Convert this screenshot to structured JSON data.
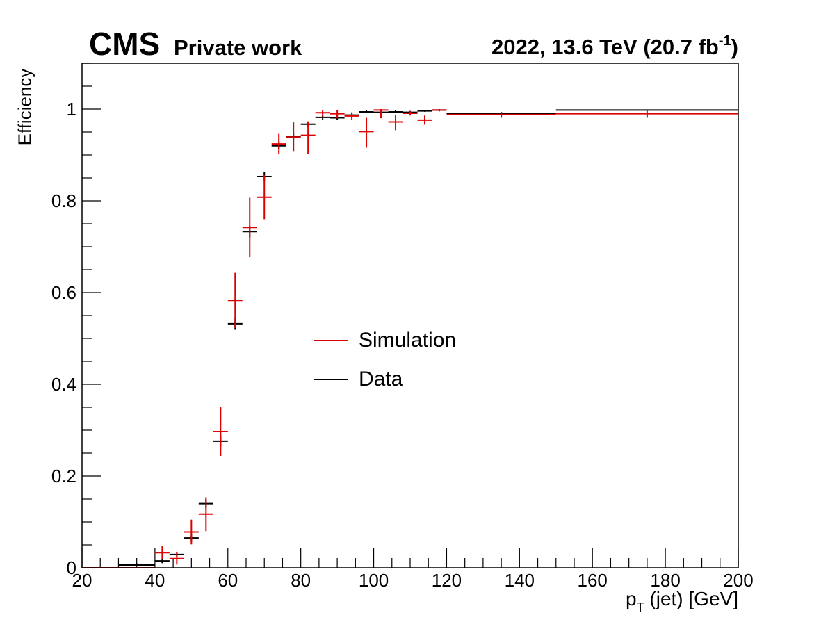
{
  "header": {
    "logo": "CMS",
    "subtitle": "Private work",
    "lumi_main": "2022, 13.6 TeV (20.7 fb",
    "lumi_sup": "-1",
    "lumi_close": ")"
  },
  "axes": {
    "ylabel": "Efficiency",
    "xlabel_main": "p",
    "xlabel_sub": "T",
    "xlabel_rest": " (jet) [GeV]"
  },
  "legend": {
    "simulation": "Simulation",
    "data": "Data"
  },
  "colors": {
    "simulation": "#dd0000",
    "data": "#000000"
  },
  "chart_data": {
    "type": "scatter",
    "xlim": [
      20,
      200
    ],
    "ylim": [
      0,
      1.1
    ],
    "xticks": [
      20,
      40,
      60,
      80,
      100,
      120,
      140,
      160,
      180,
      200
    ],
    "xtick_labels": [
      "20",
      "40",
      "60",
      "80",
      "100",
      "120",
      "140",
      "160",
      "180",
      "200"
    ],
    "yticks": [
      0,
      0.2,
      0.4,
      0.6,
      0.8,
      1
    ],
    "ytick_labels": [
      "0",
      "0.2",
      "0.4",
      "0.6",
      "0.8",
      "1"
    ],
    "grid": false,
    "legend_position": "center",
    "series": [
      {
        "name": "Simulation",
        "color": "#dd0000",
        "points": [
          {
            "xlo": 20,
            "xhi": 40,
            "y": 0.0,
            "elo": 0.0,
            "ehi": 0.002
          },
          {
            "xlo": 40,
            "xhi": 44,
            "y": 0.033,
            "elo": 0.015,
            "ehi": 0.015
          },
          {
            "xlo": 44,
            "xhi": 48,
            "y": 0.02,
            "elo": 0.013,
            "ehi": 0.013
          },
          {
            "xlo": 48,
            "xhi": 52,
            "y": 0.078,
            "elo": 0.027,
            "ehi": 0.027
          },
          {
            "xlo": 52,
            "xhi": 56,
            "y": 0.117,
            "elo": 0.037,
            "ehi": 0.037
          },
          {
            "xlo": 56,
            "xhi": 60,
            "y": 0.297,
            "elo": 0.053,
            "ehi": 0.053
          },
          {
            "xlo": 60,
            "xhi": 64,
            "y": 0.583,
            "elo": 0.06,
            "ehi": 0.06
          },
          {
            "xlo": 64,
            "xhi": 68,
            "y": 0.742,
            "elo": 0.065,
            "ehi": 0.065
          },
          {
            "xlo": 68,
            "xhi": 72,
            "y": 0.808,
            "elo": 0.048,
            "ehi": 0.048
          },
          {
            "xlo": 72,
            "xhi": 76,
            "y": 0.924,
            "elo": 0.022,
            "ehi": 0.022
          },
          {
            "xlo": 76,
            "xhi": 80,
            "y": 0.939,
            "elo": 0.032,
            "ehi": 0.032
          },
          {
            "xlo": 80,
            "xhi": 84,
            "y": 0.943,
            "elo": 0.04,
            "ehi": 0.03
          },
          {
            "xlo": 84,
            "xhi": 88,
            "y": 0.992,
            "elo": 0.008,
            "ehi": 0.006
          },
          {
            "xlo": 88,
            "xhi": 92,
            "y": 0.99,
            "elo": 0.01,
            "ehi": 0.007
          },
          {
            "xlo": 92,
            "xhi": 96,
            "y": 0.985,
            "elo": 0.009,
            "ehi": 0.008
          },
          {
            "xlo": 96,
            "xhi": 100,
            "y": 0.951,
            "elo": 0.035,
            "ehi": 0.03
          },
          {
            "xlo": 100,
            "xhi": 104,
            "y": 0.998,
            "elo": 0.018,
            "ehi": 0.002
          },
          {
            "xlo": 104,
            "xhi": 108,
            "y": 0.972,
            "elo": 0.018,
            "ehi": 0.015
          },
          {
            "xlo": 108,
            "xhi": 112,
            "y": 0.991,
            "elo": 0.005,
            "ehi": 0.004
          },
          {
            "xlo": 112,
            "xhi": 116,
            "y": 0.976,
            "elo": 0.01,
            "ehi": 0.01
          },
          {
            "xlo": 116,
            "xhi": 120,
            "y": 0.998,
            "elo": 0.003,
            "ehi": 0.002
          },
          {
            "xlo": 120,
            "xhi": 150,
            "y": 0.988,
            "elo": 0.007,
            "ehi": 0.006
          },
          {
            "xlo": 150,
            "xhi": 200,
            "y": 0.99,
            "elo": 0.009,
            "ehi": 0.007
          }
        ]
      },
      {
        "name": "Data",
        "color": "#000000",
        "points": [
          {
            "xlo": 20,
            "xhi": 30,
            "y": 0.0,
            "elo": 0.0,
            "ehi": 0.001
          },
          {
            "xlo": 30,
            "xhi": 40,
            "y": 0.006,
            "elo": 0.003,
            "ehi": 0.004
          },
          {
            "xlo": 40,
            "xhi": 44,
            "y": 0.015,
            "elo": 0.005,
            "ehi": 0.005
          },
          {
            "xlo": 44,
            "xhi": 48,
            "y": 0.029,
            "elo": 0.006,
            "ehi": 0.006
          },
          {
            "xlo": 48,
            "xhi": 52,
            "y": 0.065,
            "elo": 0.008,
            "ehi": 0.008
          },
          {
            "xlo": 52,
            "xhi": 56,
            "y": 0.14,
            "elo": 0.01,
            "ehi": 0.01
          },
          {
            "xlo": 56,
            "xhi": 60,
            "y": 0.276,
            "elo": 0.012,
            "ehi": 0.012
          },
          {
            "xlo": 60,
            "xhi": 64,
            "y": 0.532,
            "elo": 0.013,
            "ehi": 0.013
          },
          {
            "xlo": 64,
            "xhi": 68,
            "y": 0.733,
            "elo": 0.012,
            "ehi": 0.012
          },
          {
            "xlo": 68,
            "xhi": 72,
            "y": 0.853,
            "elo": 0.01,
            "ehi": 0.01
          },
          {
            "xlo": 72,
            "xhi": 76,
            "y": 0.92,
            "elo": 0.008,
            "ehi": 0.008
          },
          {
            "xlo": 76,
            "xhi": 80,
            "y": 0.94,
            "elo": 0.007,
            "ehi": 0.007
          },
          {
            "xlo": 80,
            "xhi": 84,
            "y": 0.967,
            "elo": 0.006,
            "ehi": 0.006
          },
          {
            "xlo": 84,
            "xhi": 88,
            "y": 0.982,
            "elo": 0.005,
            "ehi": 0.005
          },
          {
            "xlo": 88,
            "xhi": 92,
            "y": 0.981,
            "elo": 0.005,
            "ehi": 0.005
          },
          {
            "xlo": 92,
            "xhi": 96,
            "y": 0.987,
            "elo": 0.004,
            "ehi": 0.004
          },
          {
            "xlo": 96,
            "xhi": 100,
            "y": 0.994,
            "elo": 0.003,
            "ehi": 0.003
          },
          {
            "xlo": 100,
            "xhi": 104,
            "y": 0.993,
            "elo": 0.003,
            "ehi": 0.003
          },
          {
            "xlo": 104,
            "xhi": 108,
            "y": 0.994,
            "elo": 0.003,
            "ehi": 0.003
          },
          {
            "xlo": 108,
            "xhi": 112,
            "y": 0.993,
            "elo": 0.003,
            "ehi": 0.003
          },
          {
            "xlo": 112,
            "xhi": 116,
            "y": 0.996,
            "elo": 0.002,
            "ehi": 0.002
          },
          {
            "xlo": 116,
            "xhi": 120,
            "y": 0.998,
            "elo": 0.002,
            "ehi": 0.002
          },
          {
            "xlo": 120,
            "xhi": 150,
            "y": 0.991,
            "elo": 0.002,
            "ehi": 0.002
          },
          {
            "xlo": 150,
            "xhi": 200,
            "y": 0.998,
            "elo": 0.001,
            "ehi": 0.001
          }
        ]
      }
    ]
  }
}
